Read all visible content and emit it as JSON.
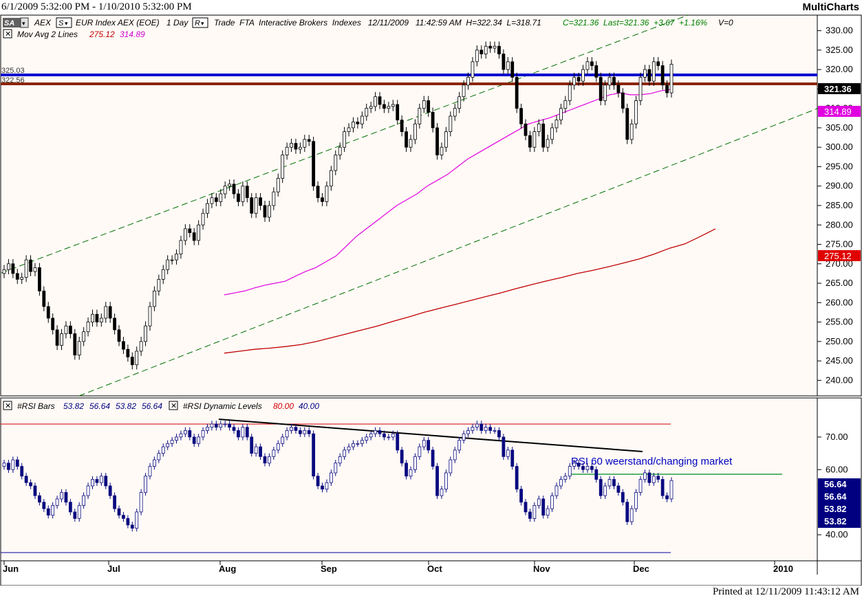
{
  "header": {
    "date_range": "6/1/2009 5:32:00 PM - 1/10/2010 5:32:00 PM",
    "brand": "MultiCharts"
  },
  "footer": {
    "printed": "Printed at 12/11/2009 11:43:12 AM"
  },
  "price_pane": {
    "sa_badge": "SA",
    "s_badge": "S",
    "r_badge": "R",
    "symbol": "AEX",
    "instrument": "EUR Index AEX (EOE)",
    "interval": "1 Day",
    "trade_info": "Trade  FTA  Interactive Brokers  Indexes   12/11/2009   11:42:59 AM  H=322.34  L=318.71",
    "close_info": "C=321.36  Last=321.36  +3.67  +1.16%",
    "volume_info": "V=0",
    "ma_label": "Mov Avg 2 Lines",
    "ma_value_1": "275.12",
    "ma_value_2": "314.89",
    "hline_label_1": "325.03",
    "hline_label_2": "322.56",
    "last_price_tag": "321.36",
    "ma_fast_tag": "314.89",
    "ma_slow_tag": "275.12",
    "colors": {
      "ma_fast": "#e000e0",
      "ma_slow": "#c00000",
      "resistance_blue": "#0000d0",
      "resistance_brown": "#8b2500",
      "channel": "#007000",
      "candle": "#000000"
    }
  },
  "rsi_pane": {
    "bars_label": "#RSI Bars",
    "bars_values": [
      "53.82",
      "56.64",
      "53.82",
      "56.64"
    ],
    "levels_label": "#RSI Dynamic Levels",
    "level_high": "80.00",
    "level_low": "40.00",
    "annotation": "RSI 60 weerstand/changing market",
    "value_tags": [
      "56.64",
      "56.64",
      "53.82",
      "53.82"
    ],
    "colors": {
      "bars": "#0a0a80",
      "upper_level": "#d00000",
      "lower_level": "#0000a0",
      "resistance_60": "#20a040",
      "trendline": "#000000",
      "annotation": "#0000c0"
    }
  },
  "chart_data": [
    {
      "type": "candlestick",
      "title": "",
      "series": [
        {
          "name": "AEX",
          "values": [
            268.5,
            270.0,
            267.5,
            266.0,
            266.5,
            271.0,
            268.0,
            269.0,
            263.0,
            259.0,
            256.0,
            253.0,
            249.0,
            252.0,
            254.0,
            252.0,
            246.5,
            250.0,
            252.5,
            255.0,
            257.0,
            255.0,
            256.0,
            259.0,
            256.0,
            253.0,
            250.0,
            248.0,
            246.0,
            244.0,
            247.5,
            250.0,
            254.0,
            259.0,
            263.0,
            266.0,
            268.5,
            271.0,
            271.0,
            272.5,
            276.0,
            279.0,
            278.0,
            276.0,
            280.0,
            283.0,
            285.5,
            287.0,
            286.0,
            288.0,
            290.0,
            290.5,
            288.0,
            286.0,
            290.0,
            287.0,
            283.0,
            287.0,
            285.0,
            282.0,
            285.0,
            288.5,
            292.0,
            298.0,
            300.0,
            301.0,
            299.5,
            300.0,
            302.0,
            301.5,
            290.0,
            287.0,
            286.0,
            290.0,
            294.0,
            298.0,
            300.0,
            304.0,
            305.0,
            306.5,
            306.0,
            308.0,
            310.0,
            310.5,
            313.0,
            311.0,
            310.0,
            310.5,
            311.0,
            307.0,
            304.0,
            300.0,
            302.0,
            306.0,
            310.0,
            312.0,
            309.0,
            305.0,
            298.0,
            300.0,
            304.0,
            308.0,
            310.0,
            313.0,
            316.0,
            318.0,
            322.0,
            325.0,
            324.0,
            326.0,
            325.5,
            326.0,
            324.0,
            320.0,
            322.0,
            318.0,
            310.0,
            306.0,
            303.0,
            300.0,
            304.0,
            306.0,
            300.0,
            302.0,
            305.0,
            307.0,
            310.0,
            312.0,
            316.0,
            318.0,
            317.0,
            320.0,
            322.0,
            321.0,
            318.0,
            312.0,
            316.0,
            318.0,
            316.0,
            314.0,
            310.0,
            302.0,
            306.0,
            312.0,
            318.0,
            320.0,
            317.0,
            322.0,
            321.0,
            316.0,
            314.0,
            321.36
          ]
        },
        {
          "name": "Mov Avg 2 Lines 314.89",
          "values": [
            262,
            262.5,
            263,
            263.8,
            264.5,
            265,
            265.5,
            266.8,
            268,
            269,
            270.5,
            272,
            274.5,
            277,
            279,
            281,
            283,
            285,
            286.5,
            288,
            290,
            291.5,
            293,
            295,
            297,
            298.5,
            300,
            301.5,
            303,
            304.5,
            306,
            306.8,
            307.5,
            308.5,
            309.5,
            310.5,
            311.5,
            312.5,
            313.5,
            314,
            313.5,
            313.5,
            313.8,
            314.5,
            314.89
          ]
        },
        {
          "name": "Mov Avg 2 Lines 275.12",
          "values": [
            247,
            247.5,
            248,
            248.3,
            248.7,
            249.2,
            250,
            251,
            252,
            253,
            254,
            255.2,
            256.3,
            257.5,
            258.5,
            259.5,
            260.5,
            261.5,
            262.5,
            263.6,
            264.6,
            265.6,
            266.5,
            267.5,
            268.3,
            269.2,
            270.2,
            271.2,
            272.5,
            274,
            275.12,
            277,
            279
          ]
        }
      ],
      "x_ticks": [
        "Jun",
        "Jul",
        "Aug",
        "Sep",
        "Oct",
        "Nov",
        "Dec",
        "2010"
      ],
      "y_ticks": [
        "240.00",
        "245.00",
        "250.00",
        "255.00",
        "260.00",
        "265.00",
        "270.00",
        "275.00",
        "280.00",
        "285.00",
        "290.00",
        "295.00",
        "300.00",
        "305.00",
        "310.00",
        "315.00",
        "320.00",
        "325.00",
        "330.00"
      ],
      "ylim": [
        236,
        334
      ],
      "horizontal_levels": [
        325.03,
        322.56
      ],
      "grid": false
    },
    {
      "type": "bar",
      "title": "",
      "series": [
        {
          "name": "#RSI Bars",
          "values": [
            62,
            60,
            63,
            61,
            58,
            56,
            55,
            52,
            50,
            48,
            46,
            49,
            51,
            53,
            50,
            47,
            45,
            49,
            52,
            55,
            57,
            56,
            58,
            55,
            52,
            48,
            46,
            45,
            43,
            42,
            47,
            53,
            58,
            61,
            63,
            65,
            67,
            68,
            69,
            70,
            71,
            72,
            70,
            68,
            70,
            72,
            73,
            74,
            73,
            74,
            74,
            73,
            72,
            70,
            73,
            70,
            65,
            67,
            64,
            62,
            64,
            66,
            68,
            70,
            72,
            73,
            72,
            71,
            72,
            71,
            58,
            55,
            54,
            56,
            59,
            62,
            64,
            66,
            67,
            68,
            68,
            69,
            70,
            71,
            72,
            71,
            70,
            70,
            71,
            66,
            62,
            58,
            60,
            64,
            67,
            69,
            66,
            61,
            52,
            54,
            59,
            63,
            66,
            69,
            71,
            72,
            73,
            74,
            72,
            73,
            72,
            72,
            70,
            64,
            66,
            61,
            54,
            50,
            47,
            45,
            49,
            51,
            46,
            48,
            52,
            55,
            57,
            58,
            61,
            62,
            61,
            60,
            61,
            60,
            57,
            52,
            55,
            57,
            55,
            53,
            50,
            44,
            48,
            53,
            57,
            59,
            56,
            58,
            57,
            52,
            51,
            56.64
          ]
        }
      ],
      "x_ticks": [
        "Jun",
        "Jul",
        "Aug",
        "Sep",
        "Oct",
        "Nov",
        "Dec",
        "2010"
      ],
      "y_ticks": [
        "40.00",
        "60.00",
        "70.00"
      ],
      "ylim": [
        32,
        82
      ],
      "levels": [
        80,
        60,
        40
      ],
      "grid": false
    }
  ]
}
